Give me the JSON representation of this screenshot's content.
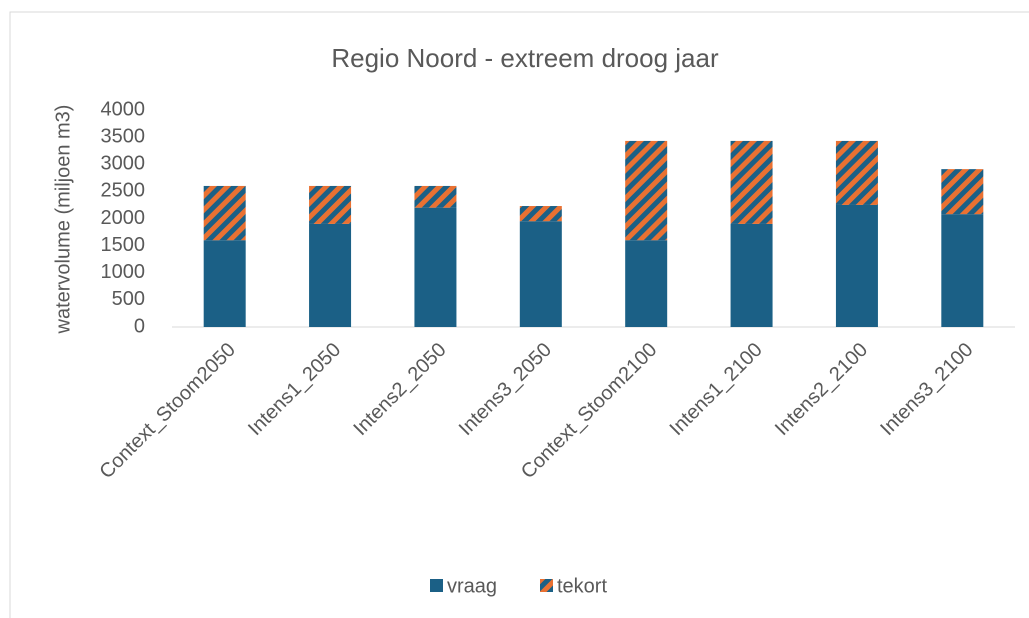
{
  "chart_data": {
    "type": "stacked_bar",
    "title": "Regio Noord - extreem droog jaar",
    "y_label": "watervolume (miljoen m3)",
    "categories": [
      "Context_Stoom2050",
      "Intens1_2050",
      "Intens2_2050",
      "Intens3_2050",
      "Context_Stoom2100",
      "Intens1_2100",
      "Intens2_2100",
      "Intens3_2100"
    ],
    "series": [
      {
        "name": "vraag",
        "color": "#1b6086",
        "values": [
          1600,
          1900,
          2200,
          1950,
          1600,
          1900,
          2250,
          2080
        ]
      },
      {
        "name": "tekort",
        "color": "#e97132",
        "values": [
          1000,
          700,
          400,
          280,
          1830,
          1530,
          1180,
          830
        ]
      }
    ],
    "ylim": [
      0,
      4000
    ],
    "yticks": [
      0,
      500,
      1000,
      1500,
      2000,
      2500,
      3000,
      3500,
      4000
    ],
    "grid": false,
    "legend": "bottom"
  }
}
